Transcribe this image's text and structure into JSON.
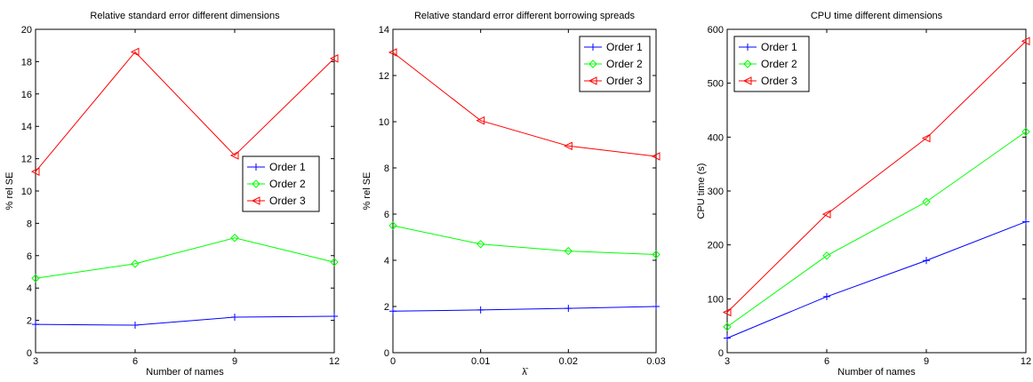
{
  "chart_data": [
    {
      "type": "line",
      "title": "Relative standard error different dimensions",
      "xlabel": "Number of names",
      "ylabel": "% rel SE",
      "x": [
        3,
        6,
        9,
        12
      ],
      "xlim": [
        3,
        12
      ],
      "ylim": [
        0,
        20
      ],
      "xticks": [
        3,
        6,
        9,
        12
      ],
      "yticks": [
        0,
        2,
        4,
        6,
        8,
        10,
        12,
        14,
        16,
        18,
        20
      ],
      "legend_position": "middle-right",
      "grid": false,
      "series": [
        {
          "name": "Order 1",
          "color": "#0000ff",
          "marker": "plus",
          "values": [
            1.75,
            1.7,
            2.2,
            2.25
          ]
        },
        {
          "name": "Order 2",
          "color": "#00ff00",
          "marker": "diamond",
          "values": [
            4.6,
            5.5,
            7.1,
            5.6
          ]
        },
        {
          "name": "Order 3",
          "color": "#ff0000",
          "marker": "triangle-left",
          "values": [
            11.2,
            18.6,
            12.2,
            18.2
          ]
        }
      ]
    },
    {
      "type": "line",
      "title": "Relative standard error different borrowing spreads",
      "xlabel": "λ̄",
      "ylabel": "% rel SE",
      "x": [
        0,
        0.01,
        0.02,
        0.03
      ],
      "xlim": [
        0,
        0.03
      ],
      "ylim": [
        0,
        14
      ],
      "xticks": [
        0,
        0.01,
        0.02,
        0.03
      ],
      "yticks": [
        0,
        2,
        4,
        6,
        8,
        10,
        12,
        14
      ],
      "legend_position": "top-right",
      "grid": false,
      "series": [
        {
          "name": "Order 1",
          "color": "#0000ff",
          "marker": "plus",
          "values": [
            1.8,
            1.85,
            1.92,
            2.0
          ]
        },
        {
          "name": "Order 2",
          "color": "#00ff00",
          "marker": "diamond",
          "values": [
            5.5,
            4.7,
            4.4,
            4.25
          ]
        },
        {
          "name": "Order 3",
          "color": "#ff0000",
          "marker": "triangle-left",
          "values": [
            13.0,
            10.05,
            8.95,
            8.5
          ]
        }
      ]
    },
    {
      "type": "line",
      "title": "CPU time different dimensions",
      "xlabel": "Number of names",
      "ylabel": "CPU time (s)",
      "x": [
        3,
        6,
        9,
        12
      ],
      "xlim": [
        3,
        12
      ],
      "ylim": [
        0,
        600
      ],
      "xticks": [
        3,
        6,
        9,
        12
      ],
      "yticks": [
        0,
        100,
        200,
        300,
        400,
        500,
        600
      ],
      "legend_position": "top-left",
      "grid": false,
      "series": [
        {
          "name": "Order 1",
          "color": "#0000ff",
          "marker": "plus",
          "values": [
            27,
            104,
            171,
            243
          ]
        },
        {
          "name": "Order 2",
          "color": "#00ff00",
          "marker": "diamond",
          "values": [
            48,
            180,
            280,
            410
          ]
        },
        {
          "name": "Order 3",
          "color": "#ff0000",
          "marker": "triangle-left",
          "values": [
            75,
            257,
            398,
            578
          ]
        }
      ]
    }
  ]
}
